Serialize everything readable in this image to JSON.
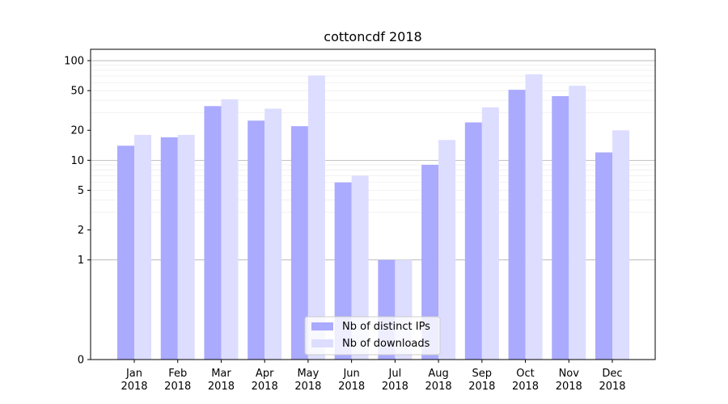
{
  "chart_data": {
    "type": "bar",
    "title": "cottoncdf 2018",
    "categories": [
      "Jan\n2018",
      "Feb\n2018",
      "Mar\n2018",
      "Apr\n2018",
      "May\n2018",
      "Jun\n2018",
      "Jul\n2018",
      "Aug\n2018",
      "Sep\n2018",
      "Oct\n2018",
      "Nov\n2018",
      "Dec\n2018"
    ],
    "series": [
      {
        "name": "Nb of distinct IPs",
        "color": "#aaaaff",
        "values": [
          14,
          17,
          35,
          25,
          22,
          6,
          1,
          9,
          24,
          51,
          44,
          12
        ]
      },
      {
        "name": "Nb of downloads",
        "color": "#ddddff",
        "values": [
          18,
          18,
          41,
          33,
          71,
          7,
          1,
          16,
          34,
          73,
          56,
          20
        ]
      }
    ],
    "yscale": "symlog",
    "yticks": [
      0,
      1,
      2,
      5,
      10,
      20,
      50,
      100
    ],
    "ylim": [
      0,
      130
    ],
    "xlabel": "",
    "ylabel": "",
    "legend_position": "lower-center",
    "grid": true
  }
}
